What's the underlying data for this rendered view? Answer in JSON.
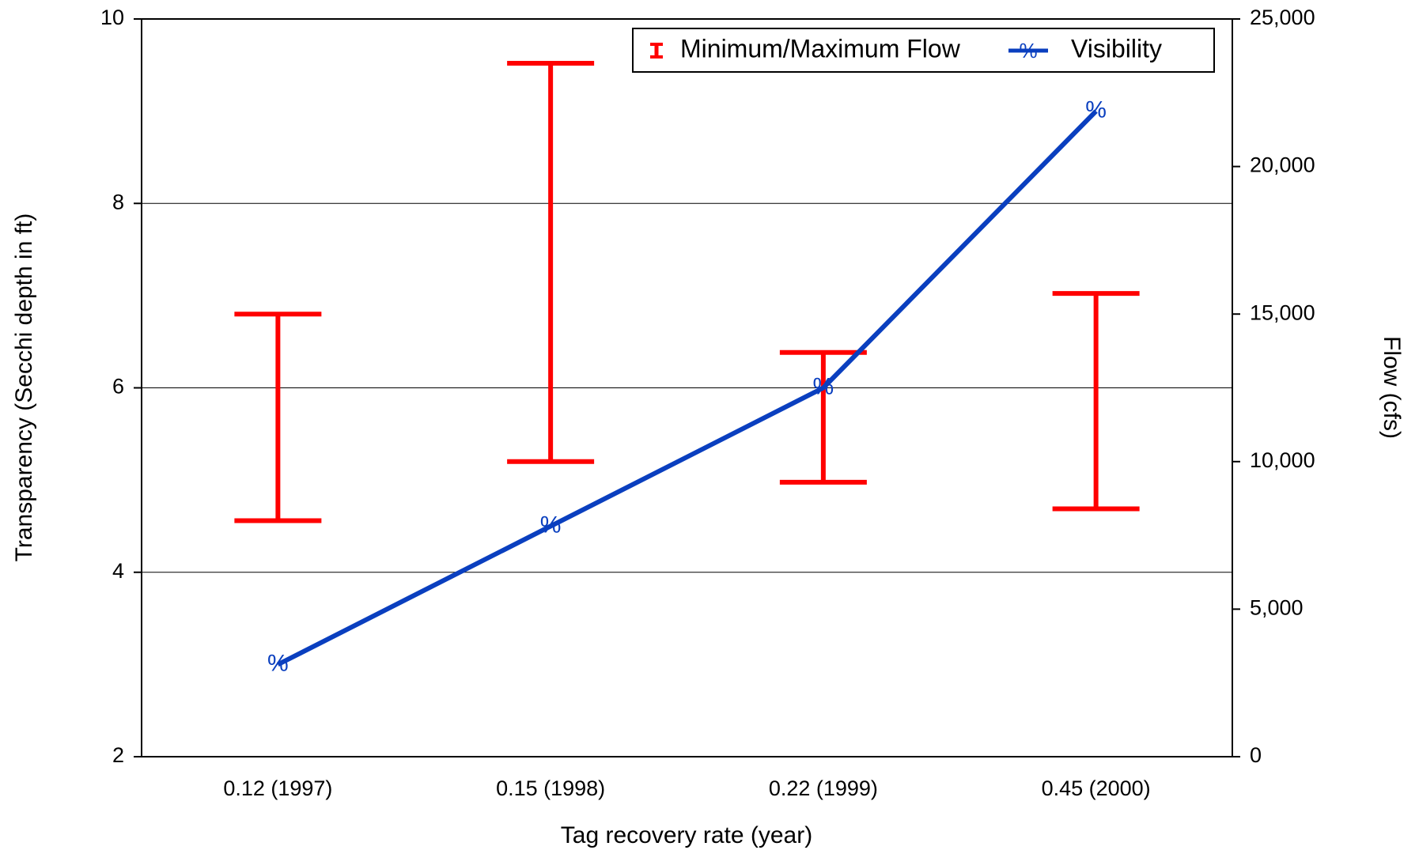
{
  "chart_data": {
    "type": "range-line",
    "x_label": "Tag recovery rate (year)",
    "y_label": "Transparency (Secchi depth in ft)",
    "y2_label": "Flow (cfs)",
    "categories": [
      "0.12 (1997)",
      "0.15 (1998)",
      "0.22 (1999)",
      "0.45 (2000)"
    ],
    "ylim": [
      2,
      10
    ],
    "yticks": [
      2,
      4,
      6,
      8,
      10
    ],
    "y2lim": [
      0,
      25000
    ],
    "y2ticks": [
      0,
      {
        "value": 5000,
        "label": "5,000"
      },
      {
        "value": 10000,
        "label": "10,000"
      },
      {
        "value": 15000,
        "label": "15,000"
      },
      {
        "value": 20000,
        "label": "20,000"
      },
      {
        "value": 25000,
        "label": "25,000"
      }
    ],
    "grid": true,
    "series": [
      {
        "name": "Minimum/Maximum Flow",
        "color": "#ff0000",
        "axis": "y2",
        "low": [
          8000,
          10000,
          9300,
          8400
        ],
        "high": [
          15000,
          23500,
          13700,
          15700
        ]
      },
      {
        "name": "Visibility",
        "color": "#0a3fbf",
        "marker": "%",
        "values": [
          3,
          4.5,
          6,
          9
        ]
      }
    ]
  }
}
